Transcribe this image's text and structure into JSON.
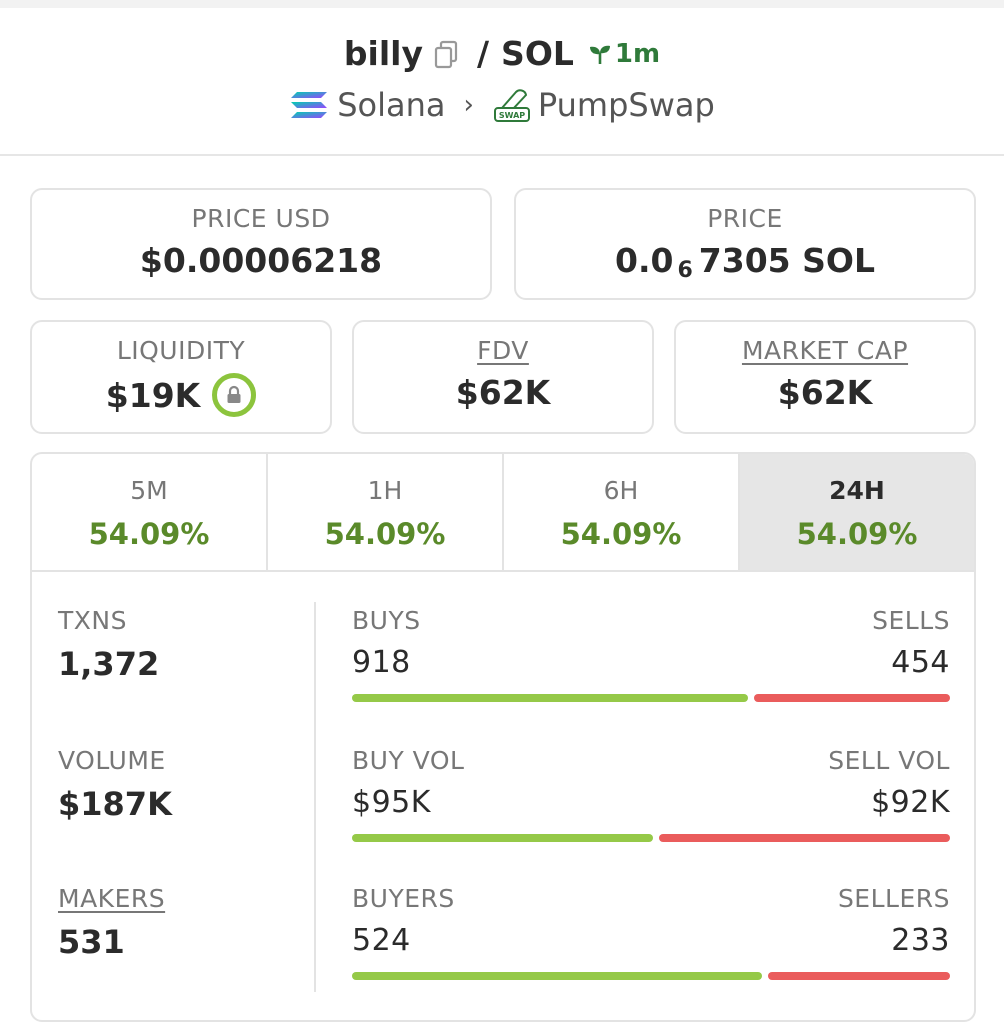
{
  "header": {
    "token": "billy",
    "slash": "/",
    "quote": "SOL",
    "age": "1m",
    "chain": "Solana",
    "chevron": "›",
    "dex": "PumpSwap",
    "dex_icon_text": "SWAP"
  },
  "price_usd": {
    "label": "PRICE USD",
    "value": "$0.00006218"
  },
  "price": {
    "label": "PRICE",
    "value_prefix": "0.0",
    "value_sub": "6",
    "value_suffix": "7305 SOL"
  },
  "liquidity": {
    "label": "LIQUIDITY",
    "value": "$19K"
  },
  "fdv": {
    "label": "FDV",
    "value": "$62K"
  },
  "market_cap": {
    "label": "MARKET CAP",
    "value": "$62K"
  },
  "tabs": [
    {
      "label": "5M",
      "value": "54.09%"
    },
    {
      "label": "1H",
      "value": "54.09%"
    },
    {
      "label": "6H",
      "value": "54.09%"
    },
    {
      "label": "24H",
      "value": "54.09%"
    }
  ],
  "metrics": {
    "txns": {
      "label": "TXNS",
      "value": "1,372"
    },
    "volume": {
      "label": "VOLUME",
      "value": "$187K"
    },
    "makers": {
      "label": "MAKERS",
      "value": "531"
    }
  },
  "splits": {
    "buys_sells": {
      "left_label": "BUYS",
      "right_label": "SELLS",
      "left_value": "918",
      "right_value": "454",
      "left_ratio": 0.669
    },
    "volume": {
      "left_label": "BUY VOL",
      "right_label": "SELL VOL",
      "left_value": "$95K",
      "right_value": "$92K",
      "left_ratio": 0.508
    },
    "traders": {
      "left_label": "BUYERS",
      "right_label": "SELLERS",
      "left_value": "524",
      "right_value": "233",
      "left_ratio": 0.692
    }
  },
  "colors": {
    "buy": "#95c948",
    "sell": "#ea5c5c",
    "positive_text": "#5a8a2a",
    "age": "#2f7a3a"
  }
}
